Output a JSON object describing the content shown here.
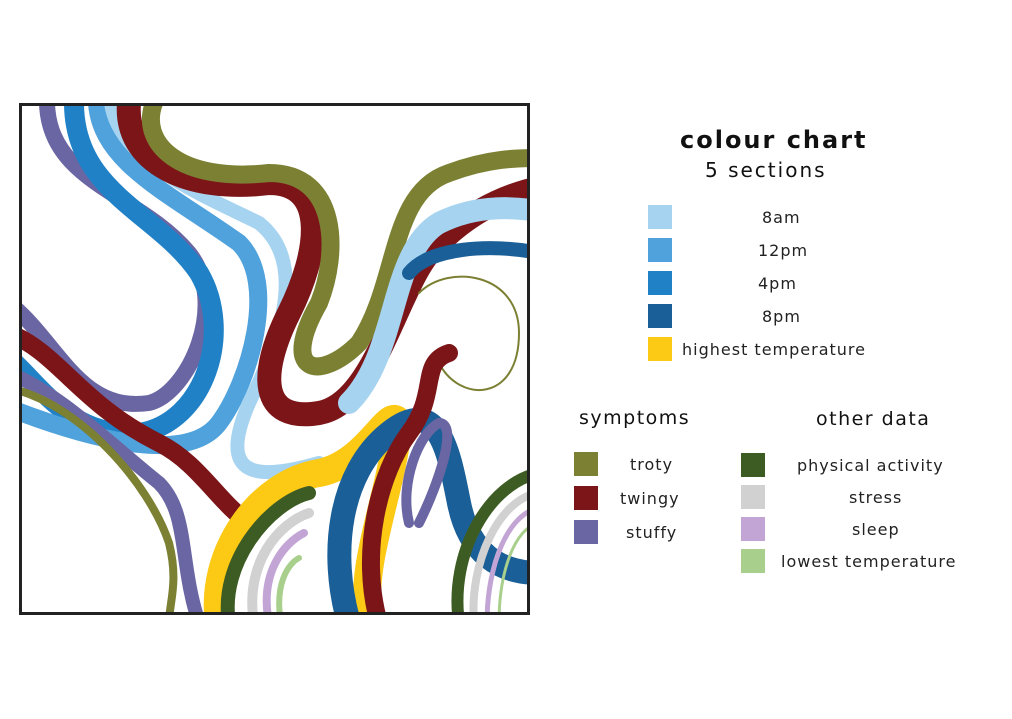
{
  "legend": {
    "title": "colour chart",
    "subtitle": "5 sections",
    "times": [
      {
        "label": "8am",
        "color": "#a6d3f0"
      },
      {
        "label": "12pm",
        "color": "#4fa2dc"
      },
      {
        "label": "4pm",
        "color": "#2181c6"
      },
      {
        "label": "8pm",
        "color": "#1a5f98"
      },
      {
        "label": "highest temperature",
        "color": "#fcc915"
      }
    ],
    "symptoms": {
      "heading": "symptoms",
      "items": [
        {
          "label": "troty",
          "color": "#7b8032"
        },
        {
          "label": "twingy",
          "color": "#7c1518"
        },
        {
          "label": "stuffy",
          "color": "#6a66a3"
        }
      ]
    },
    "other": {
      "heading": "other data",
      "items": [
        {
          "label": "physical activity",
          "color": "#3d5c23"
        },
        {
          "label": "stress",
          "color": "#d1d1d1"
        },
        {
          "label": "sleep",
          "color": "#c3a5d5"
        },
        {
          "label": "lowest temperature",
          "color": "#a8d08c"
        }
      ]
    }
  },
  "artwork": {
    "frame_color": "#222222"
  }
}
